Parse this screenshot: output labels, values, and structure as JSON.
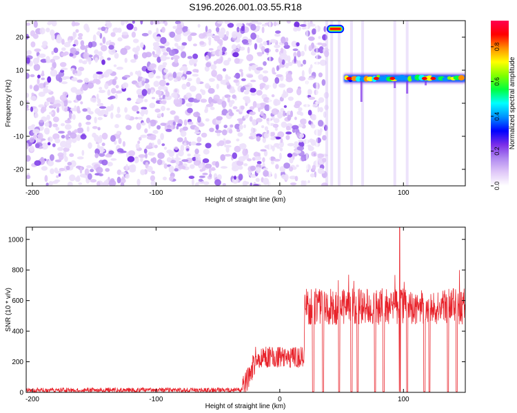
{
  "title": "S196.2026.001.03.55.R18",
  "chart_data": [
    {
      "type": "heatmap",
      "title": "S196.2026.001.03.55.R18",
      "xlabel": "Height of straight line (km)",
      "ylabel": "Frequency (Hz)",
      "xlim": [
        -205,
        150
      ],
      "ylim": [
        -25,
        25
      ],
      "xticks": [
        -200,
        -100,
        0,
        100
      ],
      "yticks": [
        -20,
        -10,
        0,
        10,
        20
      ],
      "colorbar": {
        "label": "Normalized spectral amplitude",
        "range": [
          0.0,
          0.95
        ],
        "ticks": [
          0.0,
          0.2,
          0.4,
          0.6,
          0.8
        ],
        "colormap": [
          "#ffffff",
          "#e0c8f8",
          "#b088f0",
          "#7a2ee8",
          "#0000ff",
          "#0090ff",
          "#00ffff",
          "#00ff40",
          "#80ff00",
          "#ffff00",
          "#ff9000",
          "#ff0000",
          "#ff0050"
        ]
      },
      "features": [
        {
          "label": "noise",
          "x_range": [
            -205,
            38
          ],
          "freq_range": [
            -25,
            25
          ],
          "amplitude": 0.08
        },
        {
          "label": "burst",
          "x_range": [
            38,
            52
          ],
          "freq_hz": 22.5,
          "amplitude": 0.9
        },
        {
          "label": "carrier",
          "x_range": [
            52,
            150
          ],
          "freq_hz": 7.5,
          "amplitude": 0.75
        }
      ]
    },
    {
      "type": "line",
      "xlabel": "Height of straight line (km)",
      "ylabel": "SNR (10 * v/v)",
      "xlim": [
        -205,
        150
      ],
      "ylim": [
        0,
        1080
      ],
      "xticks": [
        -200,
        -100,
        0,
        100
      ],
      "yticks": [
        0,
        200,
        400,
        600,
        800,
        1000
      ],
      "series": [
        {
          "name": "SNR",
          "color": "#e8222a",
          "segments": [
            {
              "x_range": [
                -205,
                -30
              ],
              "level": 15,
              "noise": 15
            },
            {
              "x_range": [
                -30,
                -20
              ],
              "level": 120,
              "noise": 80
            },
            {
              "x_range": [
                -20,
                20
              ],
              "level": 230,
              "noise": 70
            },
            {
              "x_range": [
                20,
                150
              ],
              "level": 560,
              "noise": 120
            }
          ],
          "dropouts": [
            27,
            35,
            48,
            58,
            63,
            77,
            84,
            97,
            103,
            117,
            121,
            136,
            143
          ],
          "spike": {
            "x": 97,
            "y": 1080
          }
        }
      ]
    }
  ]
}
